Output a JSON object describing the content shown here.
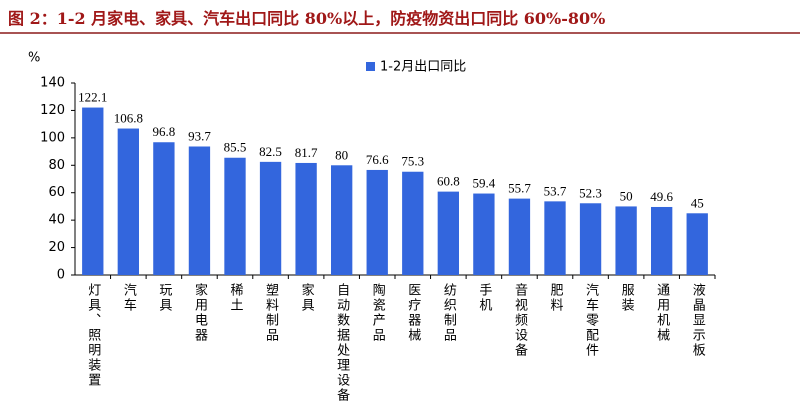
{
  "chart_data": {
    "type": "bar",
    "title": "图 2：1-2 月家电、家具、汽车出口同比 80%以上，防疫物资出口同比 60%-80%",
    "y_label": "%",
    "categories": [
      "灯具、照明装置",
      "汽车",
      "玩具",
      "家用电器",
      "稀土",
      "塑料制品",
      "家具",
      "自动数据处理设备",
      "陶瓷产品",
      "医疗器械",
      "纺织制品",
      "手机",
      "音视频设备",
      "肥料",
      "汽车零配件",
      "服装",
      "通用机械",
      "液晶显示板"
    ],
    "series": [
      {
        "name": "1-2月出口同比",
        "color": "#3366dd",
        "values": [
          122.1,
          106.8,
          96.8,
          93.7,
          85.5,
          82.5,
          81.7,
          80,
          76.6,
          75.3,
          60.8,
          59.4,
          55.7,
          53.7,
          52.3,
          50,
          49.6,
          45
        ]
      }
    ],
    "ylim": [
      0,
      140
    ],
    "yticks": [
      0,
      20,
      40,
      60,
      80,
      100,
      120,
      140
    ],
    "grid": false
  }
}
